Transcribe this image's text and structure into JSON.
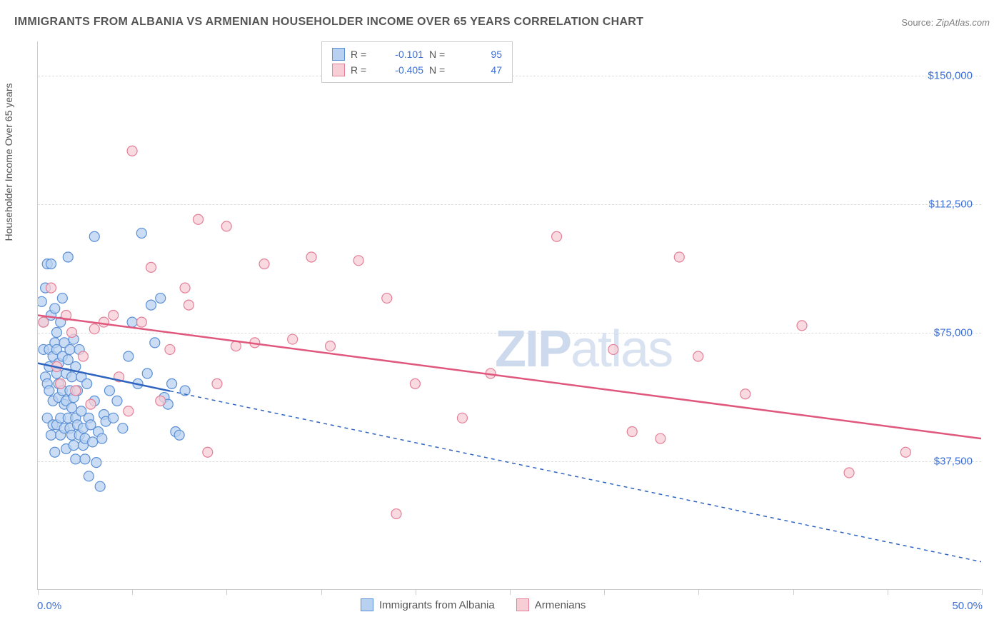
{
  "title": "IMMIGRANTS FROM ALBANIA VS ARMENIAN HOUSEHOLDER INCOME OVER 65 YEARS CORRELATION CHART",
  "source_label": "Source:",
  "source_value": "ZipAtlas.com",
  "watermark_a": "ZIP",
  "watermark_b": "atlas",
  "y_axis_title": "Householder Income Over 65 years",
  "x_min_label": "0.0%",
  "x_max_label": "50.0%",
  "chart": {
    "type": "scatter",
    "xlim": [
      0,
      50
    ],
    "ylim": [
      0,
      160000
    ],
    "x_ticks": [
      0,
      5,
      10,
      15,
      20,
      25,
      30,
      35,
      40,
      45,
      50
    ],
    "y_ticks": [
      37500,
      75000,
      112500,
      150000
    ],
    "y_tick_labels": [
      "$37,500",
      "$75,000",
      "$112,500",
      "$150,000"
    ],
    "grid_color": "#dddddd",
    "background_color": "#ffffff",
    "marker_radius": 7,
    "marker_stroke_width": 1.2,
    "series": [
      {
        "name": "Immigrants from Albania",
        "fill": "#b9d1f0",
        "stroke": "#5a8fd6",
        "line_color": "#2e63c0",
        "line_dash": "5,5",
        "R": "-0.101",
        "N": "95",
        "regression": {
          "x1": 0,
          "y1": 66000,
          "x2": 50,
          "y2": 8000,
          "solid_until_x": 7
        },
        "points": [
          [
            0.2,
            84000
          ],
          [
            0.3,
            78000
          ],
          [
            0.3,
            70000
          ],
          [
            0.4,
            62000
          ],
          [
            0.4,
            88000
          ],
          [
            0.5,
            95000
          ],
          [
            0.5,
            60000
          ],
          [
            0.5,
            50000
          ],
          [
            0.6,
            70000
          ],
          [
            0.6,
            65000
          ],
          [
            0.6,
            58000
          ],
          [
            0.7,
            80000
          ],
          [
            0.7,
            95000
          ],
          [
            0.7,
            45000
          ],
          [
            0.8,
            68000
          ],
          [
            0.8,
            48000
          ],
          [
            0.8,
            55000
          ],
          [
            0.9,
            72000
          ],
          [
            0.9,
            82000
          ],
          [
            0.9,
            40000
          ],
          [
            1.0,
            63000
          ],
          [
            1.0,
            70000
          ],
          [
            1.0,
            75000
          ],
          [
            1.0,
            48000
          ],
          [
            1.1,
            56000
          ],
          [
            1.1,
            66000
          ],
          [
            1.1,
            60000
          ],
          [
            1.2,
            78000
          ],
          [
            1.2,
            50000
          ],
          [
            1.2,
            45000
          ],
          [
            1.3,
            68000
          ],
          [
            1.3,
            58000
          ],
          [
            1.3,
            85000
          ],
          [
            1.4,
            54000
          ],
          [
            1.4,
            47000
          ],
          [
            1.4,
            72000
          ],
          [
            1.5,
            63000
          ],
          [
            1.5,
            55000
          ],
          [
            1.5,
            41000
          ],
          [
            1.6,
            67000
          ],
          [
            1.6,
            50000
          ],
          [
            1.6,
            97000
          ],
          [
            1.7,
            58000
          ],
          [
            1.7,
            70000
          ],
          [
            1.7,
            47000
          ],
          [
            1.8,
            62000
          ],
          [
            1.8,
            53000
          ],
          [
            1.8,
            45000
          ],
          [
            1.9,
            73000
          ],
          [
            1.9,
            56000
          ],
          [
            1.9,
            42000
          ],
          [
            2.0,
            50000
          ],
          [
            2.0,
            65000
          ],
          [
            2.0,
            38000
          ],
          [
            2.1,
            58000
          ],
          [
            2.1,
            48000
          ],
          [
            2.2,
            45000
          ],
          [
            2.2,
            70000
          ],
          [
            2.3,
            52000
          ],
          [
            2.3,
            62000
          ],
          [
            2.4,
            47000
          ],
          [
            2.4,
            42000
          ],
          [
            2.5,
            38000
          ],
          [
            2.5,
            44000
          ],
          [
            2.6,
            60000
          ],
          [
            2.7,
            33000
          ],
          [
            2.7,
            50000
          ],
          [
            2.8,
            48000
          ],
          [
            2.9,
            43000
          ],
          [
            3.0,
            103000
          ],
          [
            3.0,
            55000
          ],
          [
            3.1,
            37000
          ],
          [
            3.2,
            46000
          ],
          [
            3.3,
            30000
          ],
          [
            3.4,
            44000
          ],
          [
            3.5,
            51000
          ],
          [
            3.6,
            49000
          ],
          [
            3.8,
            58000
          ],
          [
            4.0,
            50000
          ],
          [
            4.2,
            55000
          ],
          [
            4.5,
            47000
          ],
          [
            4.8,
            68000
          ],
          [
            5.0,
            78000
          ],
          [
            5.3,
            60000
          ],
          [
            5.5,
            104000
          ],
          [
            5.8,
            63000
          ],
          [
            6.0,
            83000
          ],
          [
            6.2,
            72000
          ],
          [
            6.5,
            85000
          ],
          [
            6.7,
            56000
          ],
          [
            6.9,
            54000
          ],
          [
            7.1,
            60000
          ],
          [
            7.3,
            46000
          ],
          [
            7.5,
            45000
          ],
          [
            7.8,
            58000
          ]
        ]
      },
      {
        "name": "Armenians",
        "fill": "#f7cdd6",
        "stroke": "#e37f98",
        "line_color": "#e0577d",
        "line_dash": "",
        "R": "-0.405",
        "N": "47",
        "regression": {
          "x1": 0,
          "y1": 80000,
          "x2": 50,
          "y2": 44000,
          "solid_until_x": 50
        },
        "points": [
          [
            0.3,
            78000
          ],
          [
            0.7,
            88000
          ],
          [
            1.0,
            65000
          ],
          [
            1.2,
            60000
          ],
          [
            1.5,
            80000
          ],
          [
            1.8,
            75000
          ],
          [
            2.0,
            58000
          ],
          [
            2.4,
            68000
          ],
          [
            2.8,
            54000
          ],
          [
            3.0,
            76000
          ],
          [
            3.5,
            78000
          ],
          [
            4.0,
            80000
          ],
          [
            4.3,
            62000
          ],
          [
            4.8,
            52000
          ],
          [
            5.0,
            128000
          ],
          [
            5.5,
            78000
          ],
          [
            6.0,
            94000
          ],
          [
            6.5,
            55000
          ],
          [
            7.0,
            70000
          ],
          [
            7.8,
            88000
          ],
          [
            8.0,
            83000
          ],
          [
            8.5,
            108000
          ],
          [
            9.0,
            40000
          ],
          [
            9.5,
            60000
          ],
          [
            10.0,
            106000
          ],
          [
            10.5,
            71000
          ],
          [
            11.5,
            72000
          ],
          [
            12.0,
            95000
          ],
          [
            13.5,
            73000
          ],
          [
            14.5,
            97000
          ],
          [
            15.5,
            71000
          ],
          [
            17.0,
            96000
          ],
          [
            18.5,
            85000
          ],
          [
            19.0,
            22000
          ],
          [
            20.0,
            60000
          ],
          [
            22.5,
            50000
          ],
          [
            24.0,
            63000
          ],
          [
            27.5,
            103000
          ],
          [
            30.5,
            70000
          ],
          [
            31.5,
            46000
          ],
          [
            33.0,
            44000
          ],
          [
            34.0,
            97000
          ],
          [
            35.0,
            68000
          ],
          [
            37.5,
            57000
          ],
          [
            40.5,
            77000
          ],
          [
            43.0,
            34000
          ],
          [
            46.0,
            40000
          ]
        ]
      }
    ]
  },
  "legend_bottom": [
    {
      "label": "Immigrants from Albania",
      "fill": "#b9d1f0",
      "stroke": "#5a8fd6"
    },
    {
      "label": "Armenians",
      "fill": "#f7cdd6",
      "stroke": "#e37f98"
    }
  ]
}
